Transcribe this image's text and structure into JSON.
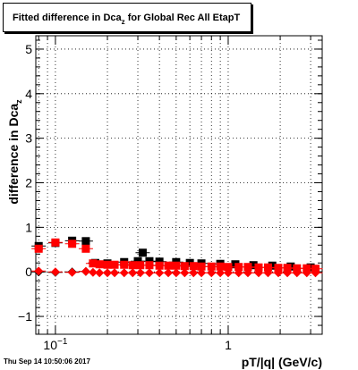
{
  "title": {
    "prefix": "Fitted difference in Dca",
    "subscript": "z",
    "suffix": " for Global Rec All EtapT"
  },
  "ylabel": {
    "main": "difference in Dca",
    "subscript": "z"
  },
  "xlabel": "pT/|q| (GeV/c)",
  "timestamp": "Thu Sep 14 10:50:06 2017",
  "colors": {
    "black": "#000000",
    "red": "#ff0000"
  },
  "chart_data": {
    "type": "scatter",
    "xscale": "log",
    "xlim": [
      0.077,
      3.5
    ],
    "ylim": [
      -1.4,
      5.3
    ],
    "grid": true,
    "yticks": [
      {
        "v": -1,
        "label": "−1"
      },
      {
        "v": 0,
        "label": "0"
      },
      {
        "v": 1,
        "label": "1"
      },
      {
        "v": 2,
        "label": "2"
      },
      {
        "v": 3,
        "label": "3"
      },
      {
        "v": 4,
        "label": "4"
      },
      {
        "v": 5,
        "label": "5"
      }
    ],
    "xticks": [
      {
        "v": 0.1,
        "label": "10",
        "sup": "−1"
      },
      {
        "v": 1,
        "label": "1",
        "sup": ""
      }
    ],
    "series": [
      {
        "marker": "square",
        "color": "#000000",
        "points": [
          [
            0.08,
            0.58
          ],
          [
            0.1,
            0.65
          ],
          [
            0.125,
            0.7
          ],
          [
            0.15,
            0.69
          ],
          [
            0.32,
            0.43
          ],
          [
            0.17,
            0.2
          ],
          [
            0.2,
            0.19
          ],
          [
            0.25,
            0.22
          ],
          [
            0.3,
            0.24
          ],
          [
            0.35,
            0.24
          ],
          [
            0.4,
            0.23
          ],
          [
            0.5,
            0.22
          ],
          [
            0.6,
            0.2
          ],
          [
            0.7,
            0.19
          ],
          [
            0.9,
            0.18
          ],
          [
            1.1,
            0.17
          ],
          [
            1.4,
            0.15
          ],
          [
            1.8,
            0.14
          ],
          [
            2.3,
            0.12
          ],
          [
            3.0,
            0.1
          ]
        ]
      },
      {
        "marker": "square",
        "color": "#ff0000",
        "points": [
          [
            0.08,
            0.52
          ],
          [
            0.1,
            0.66
          ],
          [
            0.125,
            0.63
          ],
          [
            0.15,
            0.52
          ],
          [
            0.165,
            0.19
          ],
          [
            0.18,
            0.17
          ],
          [
            0.2,
            0.16
          ],
          [
            0.22,
            0.16
          ],
          [
            0.25,
            0.16
          ],
          [
            0.28,
            0.15
          ],
          [
            0.31,
            0.15
          ],
          [
            0.35,
            0.15
          ],
          [
            0.4,
            0.14
          ],
          [
            0.45,
            0.14
          ],
          [
            0.5,
            0.14
          ],
          [
            0.56,
            0.13
          ],
          [
            0.63,
            0.13
          ],
          [
            0.7,
            0.12
          ],
          [
            0.8,
            0.12
          ],
          [
            0.9,
            0.12
          ],
          [
            1.0,
            0.11
          ],
          [
            1.15,
            0.11
          ],
          [
            1.3,
            0.11
          ],
          [
            1.5,
            0.1
          ],
          [
            1.7,
            0.1
          ],
          [
            1.95,
            0.09
          ],
          [
            2.2,
            0.09
          ],
          [
            2.5,
            0.08
          ],
          [
            2.85,
            0.08
          ],
          [
            3.2,
            0.07
          ]
        ]
      },
      {
        "marker": "diamond",
        "color": "#000000",
        "points": [
          [
            0.08,
            0.0
          ],
          [
            0.1,
            -0.01
          ],
          [
            0.125,
            0.0
          ],
          [
            0.15,
            0.01
          ]
        ]
      },
      {
        "marker": "diamond",
        "color": "#ff0000",
        "points": [
          [
            0.08,
            0.02
          ],
          [
            0.1,
            0.0
          ],
          [
            0.125,
            -0.01
          ],
          [
            0.15,
            0.01
          ],
          [
            0.165,
            -0.01
          ],
          [
            0.18,
            -0.02
          ],
          [
            0.2,
            -0.02
          ],
          [
            0.22,
            -0.02
          ],
          [
            0.25,
            -0.02
          ],
          [
            0.28,
            -0.02
          ],
          [
            0.31,
            -0.02
          ],
          [
            0.35,
            -0.02
          ],
          [
            0.4,
            -0.02
          ],
          [
            0.45,
            -0.02
          ],
          [
            0.5,
            -0.02
          ],
          [
            0.56,
            -0.02
          ],
          [
            0.63,
            -0.02
          ],
          [
            0.7,
            -0.02
          ],
          [
            0.8,
            -0.02
          ],
          [
            0.9,
            -0.02
          ],
          [
            1.0,
            -0.02
          ],
          [
            1.15,
            -0.02
          ],
          [
            1.3,
            -0.02
          ],
          [
            1.5,
            -0.02
          ],
          [
            1.7,
            -0.02
          ],
          [
            1.95,
            -0.02
          ],
          [
            2.2,
            -0.02
          ],
          [
            2.5,
            -0.02
          ],
          [
            2.85,
            -0.02
          ],
          [
            3.2,
            -0.02
          ]
        ]
      }
    ]
  }
}
